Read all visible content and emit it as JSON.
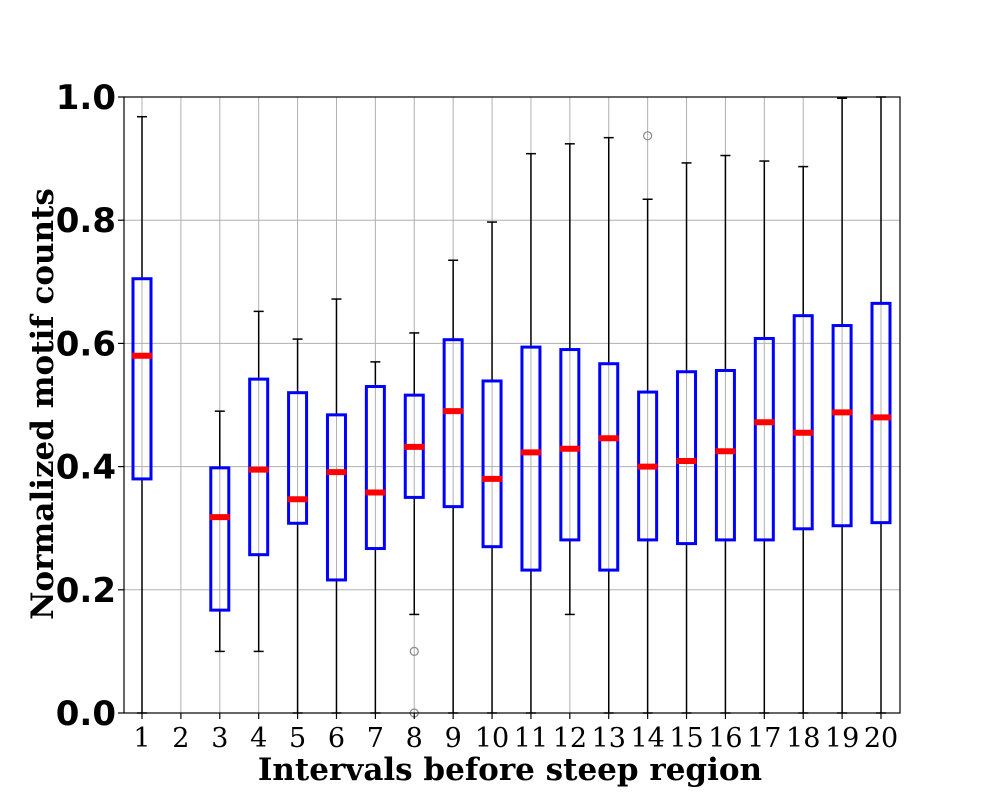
{
  "chart_data": {
    "type": "box",
    "title": "",
    "xlabel": "Intervals before steep region",
    "ylabel": "Normalized motif counts",
    "ylim": [
      0.0,
      1.0
    ],
    "yticks": [
      "0.0",
      "0.2",
      "0.4",
      "0.6",
      "0.8",
      "1.0"
    ],
    "grid": true,
    "categories": [
      "1",
      "2",
      "3",
      "4",
      "5",
      "6",
      "7",
      "8",
      "9",
      "10",
      "11",
      "12",
      "13",
      "14",
      "15",
      "16",
      "17",
      "18",
      "19",
      "20"
    ],
    "boxes": [
      {
        "category": "1",
        "whisker_low": 0.0,
        "q1": 0.38,
        "median": 0.58,
        "q3": 0.705,
        "whisker_high": 0.968,
        "outliers": []
      },
      {
        "category": "2",
        "whisker_low": null,
        "q1": null,
        "median": null,
        "q3": null,
        "whisker_high": null,
        "outliers": []
      },
      {
        "category": "3",
        "whisker_low": 0.1,
        "q1": 0.167,
        "median": 0.318,
        "q3": 0.398,
        "whisker_high": 0.49,
        "outliers": []
      },
      {
        "category": "4",
        "whisker_low": 0.1,
        "q1": 0.257,
        "median": 0.395,
        "q3": 0.542,
        "whisker_high": 0.652,
        "outliers": []
      },
      {
        "category": "5",
        "whisker_low": 0.0,
        "q1": 0.308,
        "median": 0.347,
        "q3": 0.52,
        "whisker_high": 0.607,
        "outliers": []
      },
      {
        "category": "6",
        "whisker_low": 0.0,
        "q1": 0.216,
        "median": 0.391,
        "q3": 0.484,
        "whisker_high": 0.672,
        "outliers": []
      },
      {
        "category": "7",
        "whisker_low": 0.0,
        "q1": 0.267,
        "median": 0.358,
        "q3": 0.53,
        "whisker_high": 0.57,
        "outliers": []
      },
      {
        "category": "8",
        "whisker_low": 0.16,
        "q1": 0.35,
        "median": 0.432,
        "q3": 0.516,
        "whisker_high": 0.617,
        "outliers": [
          0.1,
          0.0
        ]
      },
      {
        "category": "9",
        "whisker_low": 0.0,
        "q1": 0.335,
        "median": 0.49,
        "q3": 0.606,
        "whisker_high": 0.735,
        "outliers": []
      },
      {
        "category": "10",
        "whisker_low": 0.0,
        "q1": 0.27,
        "median": 0.38,
        "q3": 0.539,
        "whisker_high": 0.797,
        "outliers": []
      },
      {
        "category": "11",
        "whisker_low": 0.0,
        "q1": 0.232,
        "median": 0.423,
        "q3": 0.594,
        "whisker_high": 0.908,
        "outliers": []
      },
      {
        "category": "12",
        "whisker_low": 0.16,
        "q1": 0.281,
        "median": 0.429,
        "q3": 0.59,
        "whisker_high": 0.924,
        "outliers": []
      },
      {
        "category": "13",
        "whisker_low": 0.0,
        "q1": 0.232,
        "median": 0.446,
        "q3": 0.567,
        "whisker_high": 0.934,
        "outliers": []
      },
      {
        "category": "14",
        "whisker_low": 0.0,
        "q1": 0.281,
        "median": 0.4,
        "q3": 0.521,
        "whisker_high": 0.834,
        "outliers": [
          0.937
        ]
      },
      {
        "category": "15",
        "whisker_low": 0.0,
        "q1": 0.275,
        "median": 0.409,
        "q3": 0.554,
        "whisker_high": 0.893,
        "outliers": []
      },
      {
        "category": "16",
        "whisker_low": 0.0,
        "q1": 0.281,
        "median": 0.425,
        "q3": 0.556,
        "whisker_high": 0.905,
        "outliers": []
      },
      {
        "category": "17",
        "whisker_low": 0.0,
        "q1": 0.281,
        "median": 0.472,
        "q3": 0.608,
        "whisker_high": 0.896,
        "outliers": []
      },
      {
        "category": "18",
        "whisker_low": 0.0,
        "q1": 0.299,
        "median": 0.455,
        "q3": 0.645,
        "whisker_high": 0.887,
        "outliers": []
      },
      {
        "category": "19",
        "whisker_low": 0.0,
        "q1": 0.304,
        "median": 0.488,
        "q3": 0.629,
        "whisker_high": 0.998,
        "outliers": []
      },
      {
        "category": "20",
        "whisker_low": 0.0,
        "q1": 0.309,
        "median": 0.48,
        "q3": 0.665,
        "whisker_high": 1.0,
        "outliers": []
      }
    ],
    "colors": {
      "box": "#0000ff",
      "median": "#ff0000",
      "whisker": "#000000",
      "grid": "#b0b0b0",
      "outlier": "#888888"
    }
  }
}
